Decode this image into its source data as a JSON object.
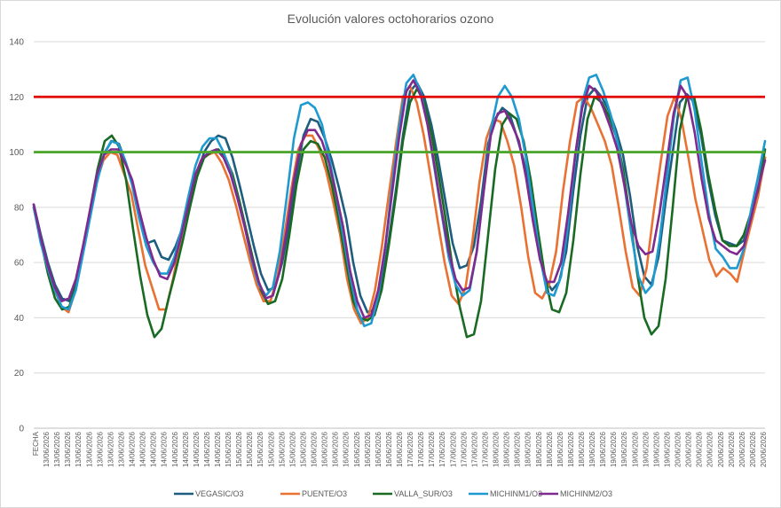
{
  "chart_data": {
    "type": "line",
    "title": "Evolución valores octohorarios ozono",
    "xlabel": "",
    "ylabel": "",
    "ylim": [
      0,
      140
    ],
    "yticks": [
      0,
      20,
      40,
      60,
      80,
      100,
      120,
      140
    ],
    "x_first_label": "FECHA",
    "x_tick_labels": [
      "13/06/2026",
      "13/06/2026",
      "13/06/2026",
      "13/06/2026",
      "13/06/2026",
      "13/06/2026",
      "13/06/2026",
      "13/06/2026",
      "14/06/2026",
      "14/06/2026",
      "14/06/2026",
      "14/06/2026",
      "14/06/2026",
      "14/06/2026",
      "14/06/2026",
      "14/06/2026",
      "14/06/2026",
      "15/06/2026",
      "15/06/2026",
      "15/06/2026",
      "15/06/2026",
      "15/06/2026",
      "15/06/2026",
      "15/06/2026",
      "15/06/2026",
      "16/06/2026",
      "16/06/2026",
      "16/06/2026",
      "16/06/2026",
      "16/06/2026",
      "16/06/2026",
      "16/06/2026",
      "16/06/2026",
      "16/06/2026",
      "17/06/2026",
      "17/06/2026",
      "17/06/2026",
      "17/06/2026",
      "17/06/2026",
      "17/06/2026",
      "17/06/2026",
      "17/06/2026",
      "18/06/2026",
      "18/06/2026",
      "18/06/2026",
      "18/06/2026",
      "18/06/2026",
      "18/06/2026",
      "18/06/2026",
      "18/06/2026",
      "18/06/2026",
      "19/06/2026",
      "19/06/2026",
      "19/06/2026",
      "19/06/2026",
      "19/06/2026",
      "19/06/2026",
      "19/06/2026",
      "19/06/2026",
      "20/06/2026",
      "20/06/2026",
      "20/06/2026",
      "20/06/2026",
      "20/06/2026",
      "20/06/2026",
      "20/06/2026",
      "20/06/2026",
      "20/06/2026"
    ],
    "reference_lines": [
      {
        "value": 120,
        "color": "#e00000"
      },
      {
        "value": 100,
        "color": "#4ea72e"
      }
    ],
    "grid": true,
    "legend_position": "bottom",
    "series": [
      {
        "name": "VEGASIC/O3",
        "color": "#1d5d7e",
        "values": [
          81,
          70,
          60,
          52,
          47,
          46,
          54,
          66,
          78,
          91,
          100,
          104,
          103,
          96,
          88,
          76,
          67,
          68,
          62,
          61,
          66,
          73,
          82,
          92,
          100,
          104,
          106,
          105,
          98,
          88,
          77,
          66,
          56,
          50,
          51,
          60,
          74,
          92,
          106,
          112,
          111,
          105,
          97,
          87,
          76,
          60,
          48,
          42,
          43,
          52,
          68,
          86,
          106,
          122,
          125,
          120,
          110,
          97,
          82,
          67,
          58,
          59,
          66,
          82,
          103,
          112,
          116,
          114,
          106,
          97,
          84,
          67,
          54,
          50,
          53,
          64,
          86,
          106,
          120,
          123,
          120,
          115,
          108,
          99,
          84,
          66,
          55,
          52,
          62,
          82,
          100,
          118,
          121,
          118,
          106,
          90,
          77,
          68,
          67,
          66,
          68,
          76,
          86,
          98
        ]
      },
      {
        "name": "PUENTE/O3",
        "color": "#e97132",
        "values": [
          80,
          69,
          58,
          50,
          44,
          42,
          50,
          63,
          76,
          89,
          97,
          100,
          99,
          92,
          85,
          72,
          59,
          51,
          43,
          43,
          54,
          67,
          80,
          90,
          97,
          99,
          100,
          96,
          90,
          81,
          71,
          61,
          52,
          46,
          46,
          55,
          70,
          87,
          101,
          106,
          106,
          101,
          93,
          82,
          70,
          54,
          43,
          38,
          40,
          50,
          66,
          85,
          103,
          120,
          124,
          118,
          106,
          91,
          75,
          60,
          48,
          45,
          51,
          68,
          89,
          105,
          112,
          111,
          104,
          95,
          80,
          62,
          49,
          47,
          52,
          64,
          86,
          104,
          118,
          120,
          116,
          110,
          104,
          95,
          80,
          64,
          51,
          48,
          58,
          78,
          96,
          113,
          120,
          112,
          98,
          83,
          72,
          61,
          55,
          58,
          56,
          53,
          64,
          74,
          84,
          98
        ]
      },
      {
        "name": "VALLA_SUR/O3",
        "color": "#196b24",
        "values": [
          80,
          68,
          56,
          47,
          43,
          44,
          52,
          65,
          80,
          94,
          104,
          106,
          102,
          90,
          72,
          55,
          41,
          33,
          36,
          47,
          57,
          68,
          80,
          91,
          98,
          100,
          101,
          98,
          92,
          82,
          71,
          60,
          50,
          45,
          46,
          54,
          70,
          88,
          101,
          104,
          103,
          98,
          88,
          75,
          60,
          46,
          40,
          39,
          41,
          50,
          66,
          84,
          104,
          118,
          123,
          118,
          107,
          92,
          76,
          58,
          44,
          33,
          34,
          46,
          70,
          94,
          110,
          114,
          112,
          104,
          90,
          72,
          55,
          43,
          42,
          49,
          68,
          92,
          112,
          120,
          118,
          113,
          106,
          94,
          76,
          56,
          40,
          34,
          37,
          54,
          80,
          108,
          120,
          120,
          108,
          92,
          79,
          68,
          66,
          66,
          70,
          78,
          86,
          101
        ]
      },
      {
        "name": "MICHINM1/O3",
        "color": "#1f9ad1",
        "values": [
          80,
          67,
          58,
          50,
          44,
          43,
          50,
          63,
          76,
          89,
          99,
          104,
          103,
          97,
          88,
          76,
          66,
          60,
          56,
          56,
          62,
          72,
          84,
          95,
          102,
          105,
          105,
          100,
          93,
          83,
          73,
          61,
          52,
          48,
          51,
          64,
          84,
          105,
          117,
          118,
          116,
          110,
          98,
          85,
          70,
          55,
          43,
          37,
          38,
          48,
          66,
          89,
          110,
          125,
          128,
          122,
          110,
          94,
          78,
          62,
          52,
          48,
          50,
          64,
          86,
          108,
          120,
          124,
          120,
          112,
          98,
          80,
          62,
          49,
          48,
          55,
          74,
          98,
          118,
          127,
          128,
          122,
          114,
          104,
          88,
          70,
          55,
          49,
          52,
          68,
          90,
          112,
          126,
          127,
          115,
          96,
          78,
          65,
          62,
          58,
          58,
          65,
          79,
          91,
          104
        ]
      },
      {
        "name": "MICHINM2/O3",
        "color": "#7e2a8e",
        "values": [
          81,
          69,
          59,
          51,
          46,
          47,
          54,
          66,
          79,
          92,
          99,
          101,
          101,
          96,
          90,
          79,
          69,
          61,
          55,
          54,
          60,
          70,
          81,
          92,
          98,
          100,
          101,
          98,
          92,
          83,
          73,
          62,
          53,
          47,
          48,
          57,
          72,
          90,
          103,
          108,
          108,
          104,
          96,
          85,
          73,
          57,
          46,
          40,
          41,
          50,
          66,
          86,
          106,
          122,
          126,
          121,
          110,
          95,
          79,
          64,
          54,
          50,
          51,
          64,
          86,
          106,
          114,
          115,
          110,
          104,
          91,
          75,
          61,
          53,
          53,
          60,
          78,
          99,
          116,
          124,
          122,
          116,
          109,
          101,
          88,
          74,
          66,
          63,
          64,
          78,
          96,
          114,
          124,
          120,
          107,
          90,
          76,
          68,
          66,
          64,
          63,
          66,
          76,
          87,
          97
        ]
      }
    ]
  }
}
